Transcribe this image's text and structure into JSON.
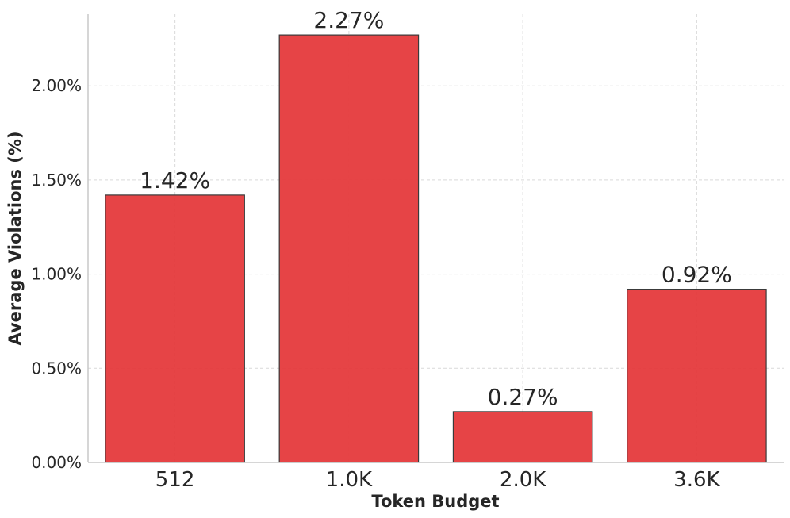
{
  "chart_data": {
    "type": "bar",
    "title": "",
    "xlabel": "Token Budget",
    "ylabel": "Average Violations (%)",
    "categories": [
      "512",
      "1.0K",
      "2.0K",
      "3.6K"
    ],
    "values": [
      1.42,
      2.27,
      0.27,
      0.92
    ],
    "data_labels": [
      "1.42%",
      "2.27%",
      "0.27%",
      "0.92%"
    ],
    "ylim": [
      0,
      2.38
    ],
    "yticks": [
      0,
      0.5,
      1.0,
      1.5,
      2.0
    ],
    "ytick_labels": [
      "0.00%",
      "0.50%",
      "1.00%",
      "1.50%",
      "2.00%"
    ],
    "grid": true,
    "bar_color": "#e53a3c",
    "bar_edge_color": "#3a3a3a",
    "grid_color": "#d9d9d9",
    "axis_color": "#c8c8c8"
  }
}
